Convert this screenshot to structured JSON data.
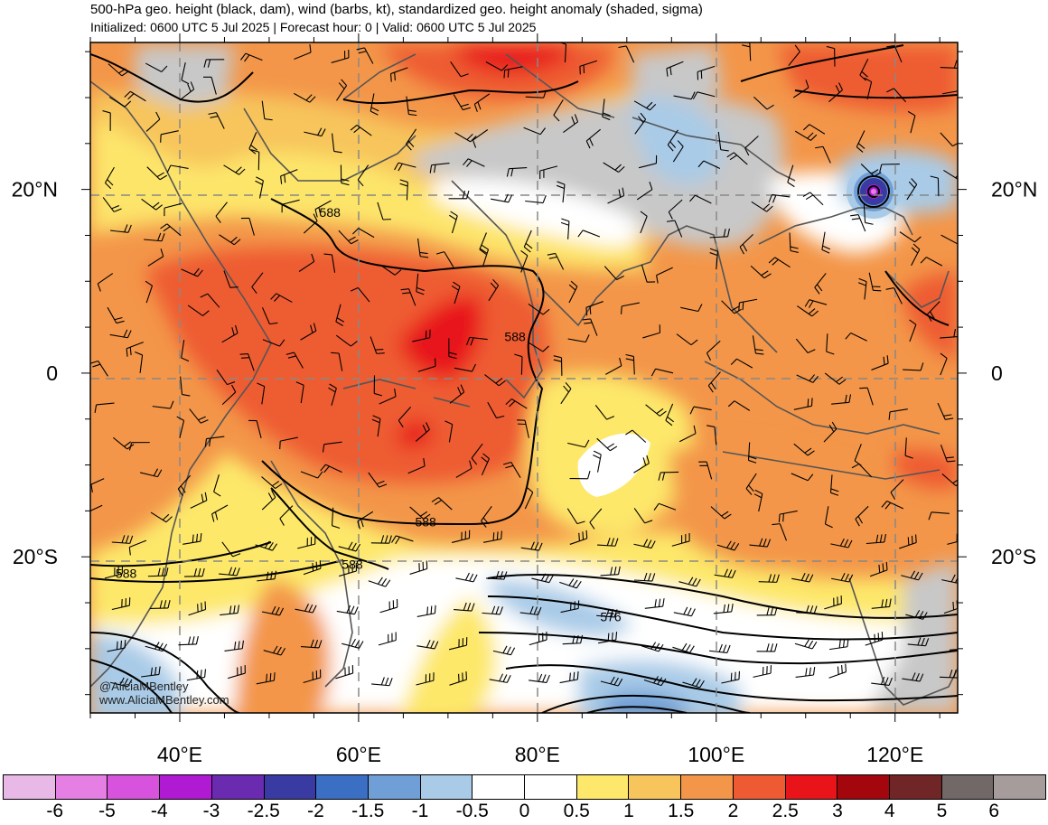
{
  "header": {
    "title": "500-hPa geo. height (black, dam), wind (barbs, kt), standardized geo. height anomaly (shaded, sigma)",
    "subtitle": "Initialized: 0600 UTC 5 Jul 2025 | Forecast hour: 0 | Valid: 0600 UTC 5 Jul 2025"
  },
  "map": {
    "region": {
      "lon_min": 30,
      "lon_max": 127,
      "lat_min": -37,
      "lat_max": 36
    },
    "lat_labels": [
      {
        "lat": 20,
        "text": "20°N"
      },
      {
        "lat": 0,
        "text": "0"
      },
      {
        "lat": -20,
        "text": "20°S"
      }
    ],
    "lon_labels": [
      {
        "lon": 40,
        "text": "40°E"
      },
      {
        "lon": 60,
        "text": "60°E"
      },
      {
        "lon": 80,
        "text": "80°E"
      },
      {
        "lon": 100,
        "text": "100°E"
      },
      {
        "lon": 120,
        "text": "120°E"
      }
    ],
    "contour_labels": [
      {
        "text": "588",
        "lon": 56.8,
        "lat": 17.5
      },
      {
        "text": "588",
        "lon": 77.5,
        "lat": 4.0
      },
      {
        "text": "588",
        "lon": 67.5,
        "lat": -16.2
      },
      {
        "text": "588",
        "lon": 59.3,
        "lat": -20.8
      },
      {
        "text": "588",
        "lon": 34.0,
        "lat": -21.8
      },
      {
        "text": "576",
        "lon": 88.2,
        "lat": -26.5
      }
    ],
    "credits": [
      "@AliciaMBentley",
      "www.AliciaMBentley.com"
    ]
  },
  "colorbar": {
    "colors": [
      "#e8b8e6",
      "#e57fe4",
      "#d853dd",
      "#b11ad3",
      "#6a2bb0",
      "#3a3aa3",
      "#3a6fc4",
      "#6f9fd6",
      "#a9cbe7",
      "#ffffff",
      "#ffffff",
      "#fde86b",
      "#f7c55c",
      "#f39649",
      "#ee5b33",
      "#e8141a",
      "#a3070d",
      "#702627",
      "#726868",
      "#a69c9c"
    ],
    "labels": [
      "-6",
      "-5",
      "-4",
      "-3",
      "-2.5",
      "-2",
      "-1.5",
      "-1",
      "-0.5",
      "0",
      "0.5",
      "1",
      "1.5",
      "2",
      "2.5",
      "3",
      "4",
      "5",
      "6"
    ]
  }
}
